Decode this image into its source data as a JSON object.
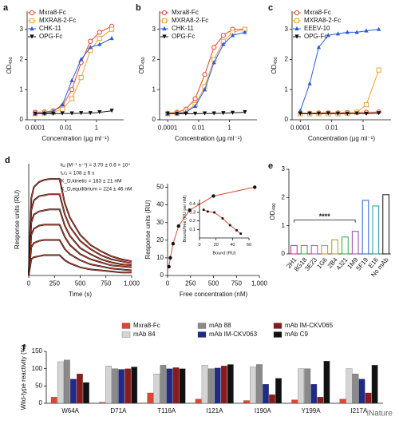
{
  "chart_data": [
    {
      "panel": "a",
      "type": "line",
      "xlog": true,
      "x": [
        0.0001,
        0.0004,
        0.0015,
        0.006,
        0.025,
        0.1,
        0.4,
        1.6,
        10
      ],
      "xlim": [
        3e-05,
        60
      ],
      "xticks": [
        0.0001,
        0.01,
        1
      ],
      "ylim": [
        0,
        3.6
      ],
      "yticks": [
        0,
        1,
        2,
        3
      ],
      "xlabel": "Concentration (μg ml⁻¹)",
      "ylabel": "OD",
      "ylabel_sub": "450",
      "series": [
        {
          "name": "Mxra8-Fc",
          "color": "#e0452e",
          "marker": "circle-open",
          "values": [
            0.25,
            0.26,
            0.3,
            0.45,
            1.0,
            1.9,
            2.6,
            2.9,
            3.1
          ]
        },
        {
          "name": "MXRA8-2-Fc",
          "color": "#f0a030",
          "marker": "square-open",
          "values": [
            0.2,
            0.22,
            0.25,
            0.35,
            0.7,
            1.4,
            2.3,
            2.7,
            3.0
          ]
        },
        {
          "name": "CHK-11",
          "color": "#2a5bd7",
          "marker": "triangle",
          "values": [
            0.2,
            0.22,
            0.28,
            0.5,
            1.3,
            2.0,
            2.4,
            2.5,
            2.7
          ]
        },
        {
          "name": "OPG-Fc",
          "color": "#111111",
          "marker": "triangle-down",
          "values": [
            0.2,
            0.2,
            0.2,
            0.21,
            0.21,
            0.22,
            0.22,
            0.25,
            0.3
          ]
        }
      ]
    },
    {
      "panel": "b",
      "type": "line",
      "xlog": true,
      "x": [
        0.0001,
        0.0004,
        0.0015,
        0.006,
        0.025,
        0.1,
        0.4,
        1.6,
        10
      ],
      "xlim": [
        3e-05,
        60
      ],
      "xticks": [
        0.0001,
        0.01,
        1
      ],
      "ylim": [
        0,
        3.6
      ],
      "yticks": [
        0,
        1,
        2,
        3
      ],
      "xlabel": "Concentration (μg ml⁻¹)",
      "ylabel": "OD",
      "ylabel_sub": "450",
      "series": [
        {
          "name": "Mxra8-Fc",
          "color": "#e0452e",
          "marker": "circle-open",
          "values": [
            0.22,
            0.25,
            0.35,
            0.7,
            1.5,
            2.4,
            2.8,
            3.0,
            3.0
          ]
        },
        {
          "name": "MXRA8-2-Fc",
          "color": "#f0a030",
          "marker": "square-open",
          "values": [
            0.2,
            0.22,
            0.28,
            0.5,
            1.1,
            2.0,
            2.6,
            2.9,
            3.0
          ]
        },
        {
          "name": "CHK-11",
          "color": "#2a5bd7",
          "marker": "triangle",
          "values": [
            0.2,
            0.2,
            0.25,
            0.45,
            1.0,
            1.9,
            2.5,
            2.8,
            2.9
          ]
        },
        {
          "name": "OPG-Fc",
          "color": "#111111",
          "marker": "triangle-down",
          "values": [
            0.2,
            0.2,
            0.2,
            0.2,
            0.21,
            0.21,
            0.22,
            0.23,
            0.25
          ]
        }
      ]
    },
    {
      "panel": "c",
      "type": "line",
      "xlog": true,
      "x": [
        0.0001,
        0.0004,
        0.0015,
        0.006,
        0.025,
        0.1,
        0.4,
        1.6,
        10
      ],
      "xlim": [
        3e-05,
        60
      ],
      "xticks": [
        0.0001,
        0.01,
        1
      ],
      "ylim": [
        0,
        3.6
      ],
      "yticks": [
        0,
        1,
        2,
        3
      ],
      "xlabel": "Concentration (μg ml⁻¹)",
      "ylabel": "OD",
      "ylabel_sub": "450",
      "series": [
        {
          "name": "Mxra8-Fc",
          "color": "#e0452e",
          "marker": "circle-open",
          "values": [
            0.22,
            0.22,
            0.23,
            0.23,
            0.23,
            0.24,
            0.24,
            0.25,
            0.26
          ]
        },
        {
          "name": "MXRA8-2-Fc",
          "color": "#f0a030",
          "marker": "square-open",
          "values": [
            0.2,
            0.2,
            0.2,
            0.2,
            0.2,
            0.22,
            0.25,
            0.5,
            1.65
          ]
        },
        {
          "name": "EEEV-10",
          "color": "#2a5bd7",
          "marker": "triangle",
          "values": [
            0.3,
            1.2,
            2.4,
            2.8,
            2.85,
            2.9,
            2.9,
            2.95,
            3.0
          ]
        },
        {
          "name": "OPG-Fc",
          "color": "#111111",
          "marker": "triangle-down",
          "values": [
            0.2,
            0.2,
            0.2,
            0.21,
            0.2,
            0.2,
            0.21,
            0.2,
            0.22
          ]
        }
      ]
    },
    {
      "panel": "d",
      "type": "line",
      "fit_color": "#e8462a",
      "x": [
        0,
        25,
        50,
        100,
        150,
        200,
        250,
        300,
        350,
        400,
        500,
        600,
        700,
        800,
        900,
        1000
      ],
      "xlim": [
        0,
        1000
      ],
      "xticks": [
        0,
        250,
        500,
        750,
        {
          "value": 1000,
          "label": "1,000"
        }
      ],
      "ylim": [
        0,
        110
      ],
      "xlabel": "Time (s)",
      "ylabel": "Response units (RU)",
      "annotations": [
        "kₐ (M⁻¹ s⁻¹) = 3.70 ± 0.6 × 10⁴",
        "t₁/₂ = 108 ± 6 s",
        "K_D,kinetic = 183 ± 21 nM",
        "K_D,equilibrium = 224 ± 46 nM"
      ],
      "series": [
        {
          "color": "#111111",
          "values": [
            0,
            76,
            87,
            92,
            94,
            95,
            95,
            95,
            71,
            57,
            40,
            30,
            24,
            19,
            16,
            14
          ]
        },
        {
          "color": "#111111",
          "values": [
            0,
            64,
            74,
            78,
            79,
            80,
            80,
            80,
            60,
            48,
            34,
            26,
            20,
            16,
            14,
            12
          ]
        },
        {
          "color": "#111111",
          "values": [
            0,
            52,
            60,
            63,
            64,
            65,
            65,
            65,
            49,
            39,
            27,
            21,
            16,
            13,
            11,
            10
          ]
        },
        {
          "color": "#111111",
          "values": [
            0,
            40,
            46,
            49,
            50,
            50,
            50,
            50,
            38,
            30,
            21,
            16,
            13,
            10,
            9,
            8
          ]
        },
        {
          "color": "#111111",
          "values": [
            0,
            28,
            32,
            34,
            35,
            35,
            35,
            35,
            26,
            21,
            15,
            11,
            9,
            7,
            6,
            5
          ]
        },
        {
          "color": "#111111",
          "values": [
            0,
            16,
            18,
            19,
            20,
            20,
            20,
            20,
            15,
            12,
            8,
            6,
            5,
            4,
            3,
            3
          ]
        }
      ]
    },
    {
      "type": "scatter",
      "color": "#111111",
      "fit_color": "#e8462a",
      "x": [
        15,
        30,
        60,
        120,
        240,
        500,
        950
      ],
      "values": [
        5,
        10,
        18,
        28,
        37,
        45,
        50
      ],
      "xlim": [
        0,
        1000
      ],
      "xticks": [
        0,
        250,
        500,
        750,
        {
          "value": 1000,
          "label": "1,000"
        }
      ],
      "ylim": [
        0,
        52
      ],
      "yticks": [
        0,
        10,
        20,
        30,
        40,
        50
      ],
      "xlabel": "Free concentration (nM)",
      "ylabel": "Response units (RU)"
    },
    {
      "type": "scatter",
      "color": "#111111",
      "fit_color": "#e8462a",
      "x": [
        5,
        10,
        18,
        28,
        37,
        45,
        50
      ],
      "values": [
        0.33,
        0.31,
        0.3,
        0.23,
        0.15,
        0.09,
        0.05
      ],
      "xlim": [
        0,
        60
      ],
      "xticks": [
        0,
        20,
        40,
        60
      ],
      "ylim": [
        0,
        0.45
      ],
      "yticks": [
        0.1,
        0.2,
        0.3,
        0.4
      ],
      "xlabel": "Bound (RU)",
      "ylabel": "Bound/free (RU per nM)"
    },
    {
      "panel": "e",
      "type": "bar",
      "categories": [
        "2H1",
        "8G18",
        "3E23",
        "1G6",
        "2B4",
        "4J21",
        "1M9",
        "5F19",
        "E16",
        "No mAb"
      ],
      "values": [
        0.3,
        0.3,
        0.3,
        0.3,
        0.5,
        0.6,
        0.8,
        1.9,
        1.7,
        2.1
      ],
      "colors": [
        "#d81b9a",
        "#2eaa3a",
        "#c040c0",
        "#f07d1a",
        "#a0a020",
        "#2eaa3a",
        "#9b3fb5",
        "#2a5bd7",
        "#1b9aa0",
        "#111111"
      ],
      "ylim": [
        0,
        3
      ],
      "yticks": [
        0,
        1,
        2,
        3
      ],
      "ylabel": "OD",
      "ylabel_sub": "490",
      "significance": "****"
    },
    {
      "panel": "f",
      "type": "grouped_bar",
      "categories": [
        "W64A",
        "D71A",
        "T116A",
        "I121A",
        "I190A",
        "Y199A",
        "I217A"
      ],
      "ylim": [
        0,
        150
      ],
      "yticks": [
        0,
        50,
        100,
        150
      ],
      "ylabel": "Wild-type reactivity (%)",
      "series": [
        {
          "name": "Mxra8-Fc",
          "color": "#e0452e",
          "values": [
            18,
            3,
            30,
            12,
            8,
            10,
            12
          ]
        },
        {
          "name": "mAb 84",
          "color": "#d4d4d4",
          "values": [
            120,
            108,
            85,
            110,
            105,
            100,
            100
          ]
        },
        {
          "name": "mAb 88",
          "color": "#8a8a8a",
          "values": [
            125,
            100,
            110,
            100,
            112,
            100,
            85
          ]
        },
        {
          "name": "mAb IM-CKV063",
          "color": "#1f2a8a",
          "values": [
            70,
            98,
            100,
            102,
            55,
            55,
            70
          ]
        },
        {
          "name": "mAb IM-CKV065",
          "color": "#8b1a1a",
          "values": [
            85,
            100,
            103,
            108,
            25,
            18,
            30
          ]
        },
        {
          "name": "mAb C9",
          "color": "#111111",
          "values": [
            60,
            105,
            100,
            112,
            72,
            122,
            110
          ]
        }
      ]
    }
  ],
  "watermark": "iNature"
}
